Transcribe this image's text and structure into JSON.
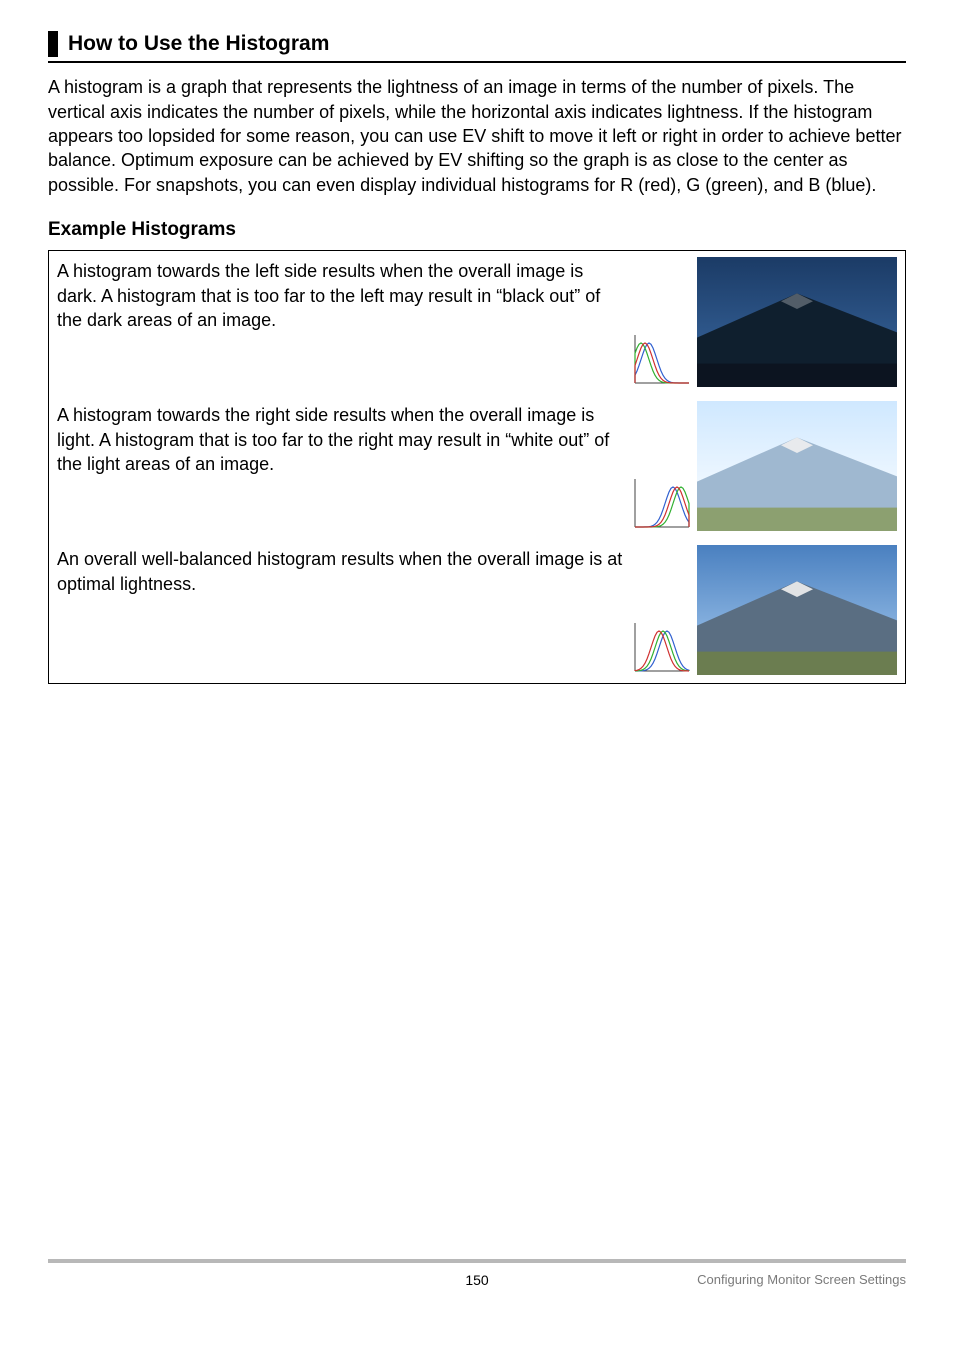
{
  "heading": {
    "title": "How to Use the Histogram"
  },
  "intro": "A histogram is a graph that represents the lightness of an image in terms of the number of pixels. The vertical axis indicates the number of pixels, while the horizontal axis indicates lightness. If the histogram appears too lopsided for some reason, you can use EV shift to move it left or right in order to achieve better balance. Optimum exposure can be achieved by EV shifting so the graph is as close to the center as possible. For snapshots, you can even display individual histograms for R (red), G (green), and B (blue).",
  "subheading": "Example Histograms",
  "examples": [
    {
      "text": "A histogram towards the left side results when the overall image is dark. A histogram that is too far to the left may result in “black out” of the dark areas of an image.",
      "hist_type": "left",
      "scene_brightness": "dark"
    },
    {
      "text": "A histogram towards the right side results when the overall image is light. A histogram that is too far to the right may result in “white out” of the light areas of an image.",
      "hist_type": "right",
      "scene_brightness": "light"
    },
    {
      "text": "An overall well-balanced histogram results when the overall image is at optimal lightness.",
      "hist_type": "center",
      "scene_brightness": "optimal"
    }
  ],
  "footer": {
    "page": "150",
    "section": "Configuring Monitor Screen Settings"
  },
  "styling": {
    "body_font_size": 18,
    "heading_font_size": 21,
    "sub_font_size": 19,
    "footer_font_size": 14,
    "text_color": "#000000",
    "rule_color": "#000000",
    "footer_rule_color": "#b8b8b8",
    "footer_label_color": "#7a7a7a",
    "background": "#ffffff",
    "landscape": {
      "dark": {
        "sky_top": "#1b3b66",
        "sky_bot": "#3b6aa3",
        "mtn": "#0f1f2e",
        "ground": "#0c1420"
      },
      "light": {
        "sky_top": "#cfe8ff",
        "sky_bot": "#ffffff",
        "mtn": "#9fb8d0",
        "ground": "#8ca070"
      },
      "optimal": {
        "sky_top": "#4a80c0",
        "sky_bot": "#a8ccf0",
        "mtn": "#5a6e82",
        "ground": "#6b7d50"
      }
    },
    "hist_colors": {
      "r": "#d03030",
      "g": "#30b030",
      "b": "#3060d0",
      "axis": "#404040"
    }
  }
}
